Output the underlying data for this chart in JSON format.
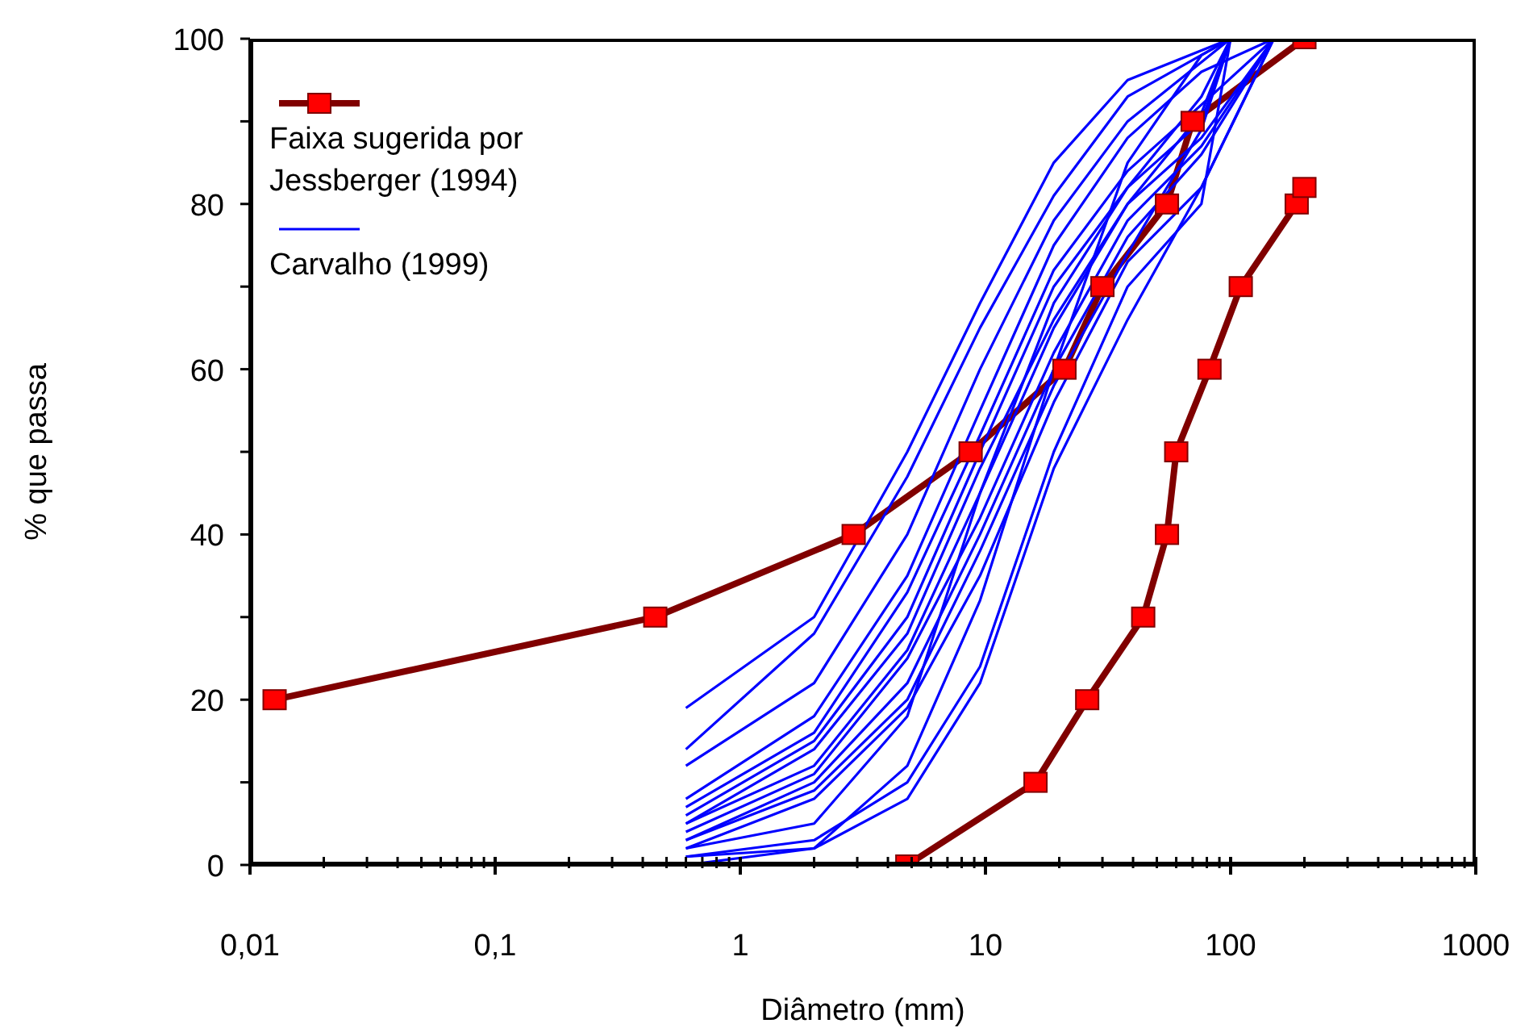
{
  "chart_data": {
    "type": "line",
    "xlabel": "Diâmetro (mm)",
    "ylabel": "% que passa",
    "log": "x",
    "grid": false,
    "legend": "top left",
    "line_style": "solid",
    "xlim": [
      0.01,
      1000
    ],
    "ylim": [
      0,
      100
    ],
    "xticks": [
      {
        "value": 0.01,
        "label": "0,01"
      },
      {
        "value": 0.02,
        "label": null
      },
      {
        "value": 0.03,
        "label": null
      },
      {
        "value": 0.04,
        "label": null
      },
      {
        "value": 0.05,
        "label": null
      },
      {
        "value": 0.06,
        "label": null
      },
      {
        "value": 0.07,
        "label": null
      },
      {
        "value": 0.08,
        "label": null
      },
      {
        "value": 0.09,
        "label": null
      },
      {
        "value": 0.1,
        "label": "0,1"
      },
      {
        "value": 0.2,
        "label": null
      },
      {
        "value": 0.3,
        "label": null
      },
      {
        "value": 0.4,
        "label": null
      },
      {
        "value": 0.5,
        "label": null
      },
      {
        "value": 0.6,
        "label": null
      },
      {
        "value": 0.7,
        "label": null
      },
      {
        "value": 0.8,
        "label": null
      },
      {
        "value": 0.9,
        "label": null
      },
      1,
      {
        "value": 2,
        "label": null
      },
      {
        "value": 3,
        "label": null
      },
      {
        "value": 4,
        "label": null
      },
      {
        "value": 5,
        "label": null
      },
      {
        "value": 6,
        "label": null
      },
      {
        "value": 7,
        "label": null
      },
      {
        "value": 8,
        "label": null
      },
      {
        "value": 9,
        "label": null
      },
      10,
      {
        "value": 20,
        "label": null
      },
      {
        "value": 30,
        "label": null
      },
      {
        "value": 40,
        "label": null
      },
      {
        "value": 50,
        "label": null
      },
      {
        "value": 60,
        "label": null
      },
      {
        "value": 70,
        "label": null
      },
      {
        "value": 80,
        "label": null
      },
      {
        "value": 90,
        "label": null
      },
      100,
      {
        "value": 200,
        "label": null
      },
      {
        "value": 300,
        "label": null
      },
      {
        "value": 400,
        "label": null
      },
      {
        "value": 500,
        "label": null
      },
      {
        "value": 600,
        "label": null
      },
      {
        "value": 700,
        "label": null
      },
      {
        "value": 800,
        "label": null
      },
      {
        "value": 900,
        "label": null
      },
      1000
    ],
    "yticks": [
      0,
      {
        "value": 10,
        "label": null
      },
      20,
      {
        "value": 30,
        "label": null
      },
      40,
      {
        "value": 50,
        "label": null
      },
      60,
      {
        "value": 70,
        "label": null
      },
      80,
      {
        "value": 90,
        "label": null
      },
      100
    ],
    "series": [
      {
        "name": "Faixa sugerida por Jessberger (1994)",
        "color": "#800000",
        "marker": "square",
        "x": [
          0.0126,
          0.45,
          2.9,
          8.7,
          21,
          30,
          55,
          70,
          200
        ],
        "values": [
          20,
          30,
          40,
          50,
          60,
          70,
          80,
          90,
          100
        ],
        "colors": [
          "#ff0000",
          "#ff0000",
          "#ff0000",
          "#ff0000",
          "#ff0000",
          "#ff0000",
          "#ff0000",
          "#ff0000",
          "#ff0000"
        ]
      },
      {
        "color": "#800000",
        "marker": "square",
        "x": [
          4.8,
          16,
          26,
          44,
          55,
          60,
          82,
          110,
          186,
          200
        ],
        "values": [
          0,
          10,
          20,
          30,
          40,
          50,
          60,
          70,
          80,
          82
        ],
        "colors": [
          "#ff0000",
          "#ff0000",
          "#ff0000",
          "#ff0000",
          "#ff0000",
          "#ff0000",
          "#ff0000",
          "#ff0000",
          "#ff0000",
          "#ff0000"
        ]
      },
      {
        "name": "Carvalho (1999)",
        "color": "#0000ff",
        "marker": "none",
        "x": [
          0.6,
          2,
          4.8,
          9.5,
          19,
          38,
          100
        ],
        "values": [
          19,
          30,
          50,
          68,
          85,
          95,
          100
        ]
      },
      {
        "color": "#0000ff",
        "marker": "none",
        "x": [
          0.6,
          2,
          4.8,
          9.5,
          19,
          38,
          100
        ],
        "values": [
          14,
          28,
          47,
          65,
          81,
          93,
          100
        ]
      },
      {
        "color": "#0000ff",
        "marker": "none",
        "x": [
          0.6,
          2,
          4.8,
          9.5,
          19,
          38,
          100
        ],
        "values": [
          12,
          22,
          40,
          60,
          78,
          90,
          100
        ]
      },
      {
        "color": "#0000ff",
        "marker": "none",
        "x": [
          0.6,
          2,
          4.8,
          9.5,
          19,
          38,
          76,
          150
        ],
        "values": [
          8,
          18,
          35,
          55,
          75,
          88,
          96,
          100
        ]
      },
      {
        "color": "#0000ff",
        "marker": "none",
        "x": [
          0.6,
          2,
          4.8,
          9.5,
          19,
          38,
          76,
          150
        ],
        "values": [
          7,
          16,
          33,
          52,
          72,
          84,
          92,
          100
        ]
      },
      {
        "color": "#0000ff",
        "marker": "none",
        "x": [
          0.6,
          2,
          4.8,
          9.5,
          19,
          38,
          76,
          100
        ],
        "values": [
          6,
          15,
          30,
          50,
          70,
          82,
          90,
          100
        ]
      },
      {
        "color": "#0000ff",
        "marker": "none",
        "x": [
          0.6,
          2,
          4.8,
          9.5,
          19,
          38,
          76,
          150
        ],
        "values": [
          5,
          14,
          28,
          48,
          66,
          80,
          88,
          100
        ]
      },
      {
        "color": "#0000ff",
        "marker": "none",
        "x": [
          0.6,
          2,
          4.8,
          9.5,
          19,
          38,
          76,
          100
        ],
        "values": [
          5,
          12,
          26,
          45,
          68,
          82,
          93,
          100
        ]
      },
      {
        "color": "#0000ff",
        "marker": "none",
        "x": [
          0.6,
          2,
          4.8,
          9.5,
          19,
          38,
          76,
          150
        ],
        "values": [
          4,
          11,
          25,
          42,
          62,
          78,
          87,
          100
        ]
      },
      {
        "color": "#0000ff",
        "marker": "none",
        "x": [
          0.6,
          2,
          4.8,
          9.5,
          19,
          38,
          76,
          150
        ],
        "values": [
          3,
          10,
          22,
          40,
          60,
          76,
          86,
          100
        ]
      },
      {
        "color": "#0000ff",
        "marker": "none",
        "x": [
          0.6,
          2,
          4.8,
          9.5,
          19,
          38,
          76,
          100
        ],
        "values": [
          3,
          9,
          20,
          38,
          58,
          74,
          89,
          100
        ]
      },
      {
        "color": "#0000ff",
        "marker": "none",
        "x": [
          0.6,
          2,
          4.8,
          9.5,
          19,
          38,
          76,
          150
        ],
        "values": [
          2,
          8,
          19,
          35,
          56,
          73,
          82,
          100
        ]
      },
      {
        "color": "#0000ff",
        "marker": "none",
        "x": [
          0.6,
          2,
          4.8,
          9.5,
          19,
          38,
          76,
          100
        ],
        "values": [
          2,
          5,
          18,
          45,
          65,
          80,
          91,
          100
        ]
      },
      {
        "color": "#0000ff",
        "marker": "none",
        "x": [
          0.6,
          2,
          4.8,
          9.5,
          19,
          38,
          76,
          100
        ],
        "values": [
          1,
          3,
          10,
          24,
          50,
          70,
          80,
          100
        ]
      },
      {
        "color": "#0000ff",
        "marker": "none",
        "x": [
          0.6,
          2,
          4.8,
          9.5,
          19,
          38,
          76,
          150
        ],
        "values": [
          1,
          2,
          8,
          22,
          48,
          66,
          82,
          100
        ]
      },
      {
        "color": "#0000ff",
        "marker": "none",
        "x": [
          0.6,
          2,
          4.8,
          9.5,
          19,
          38,
          76,
          100
        ],
        "values": [
          0,
          2,
          12,
          32,
          60,
          85,
          98,
          100
        ]
      }
    ]
  }
}
